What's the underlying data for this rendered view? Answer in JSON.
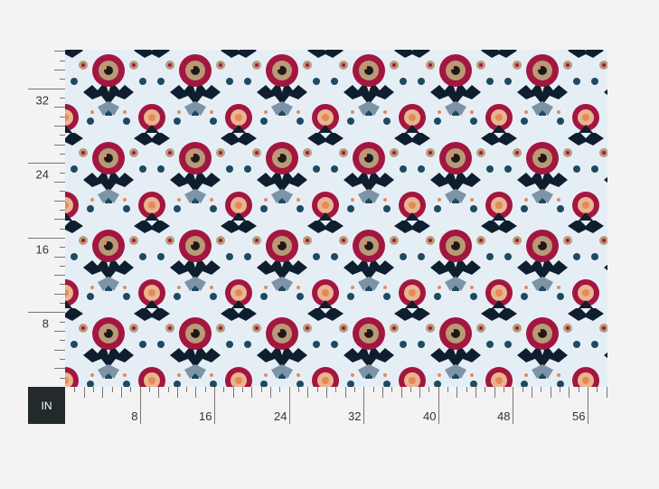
{
  "unit_label": "IN",
  "ruler": {
    "x_labels": [
      "8",
      "16",
      "24",
      "32",
      "40",
      "48",
      "56"
    ],
    "y_labels": [
      "8",
      "16",
      "24",
      "32"
    ],
    "x_max_inches": 58,
    "y_max_inches": 36
  },
  "pattern": {
    "background": "#e6eef5",
    "colors": {
      "crimson": "#a3163f",
      "navy": "#0f1e2e",
      "teal": "#1d4a63",
      "slate": "#7d93a6",
      "tan": "#b89a78",
      "peach": "#e48a5a"
    }
  }
}
